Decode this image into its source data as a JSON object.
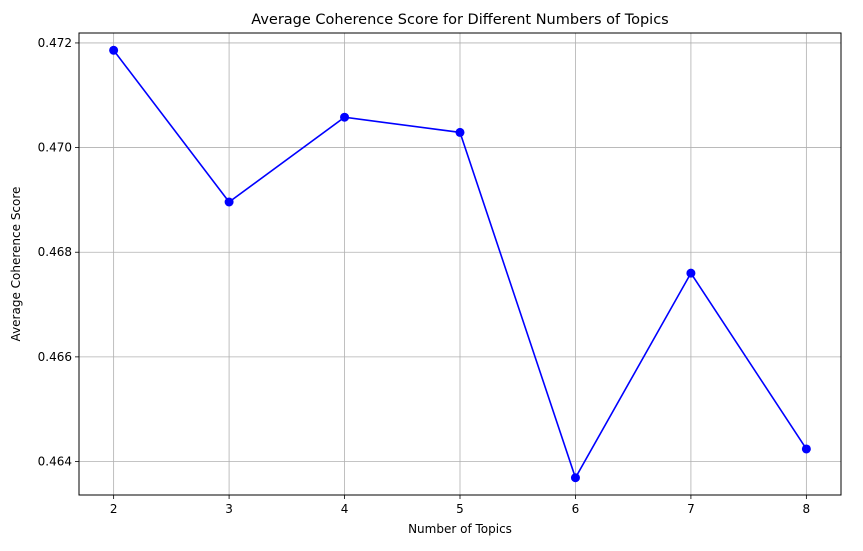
{
  "chart_data": {
    "type": "line",
    "title": "Average Coherence Score for Different Numbers of Topics",
    "xlabel": "Number of Topics",
    "ylabel": "Average Coherence Score",
    "x": [
      2,
      3,
      4,
      5,
      6,
      7,
      8
    ],
    "series": [
      {
        "values": [
          0.47186,
          0.46896,
          0.47058,
          0.47029,
          0.46369,
          0.4676,
          0.46424
        ]
      }
    ],
    "xticks": [
      "2",
      "3",
      "4",
      "5",
      "6",
      "7",
      "8"
    ],
    "yticks": [
      "0.464",
      "0.466",
      "0.468",
      "0.470",
      "0.472"
    ],
    "xlim": [
      1.7,
      8.3
    ],
    "ylim": [
      0.46336,
      0.47219
    ],
    "grid": true,
    "line_color": "#0000ff",
    "marker": "circle"
  }
}
